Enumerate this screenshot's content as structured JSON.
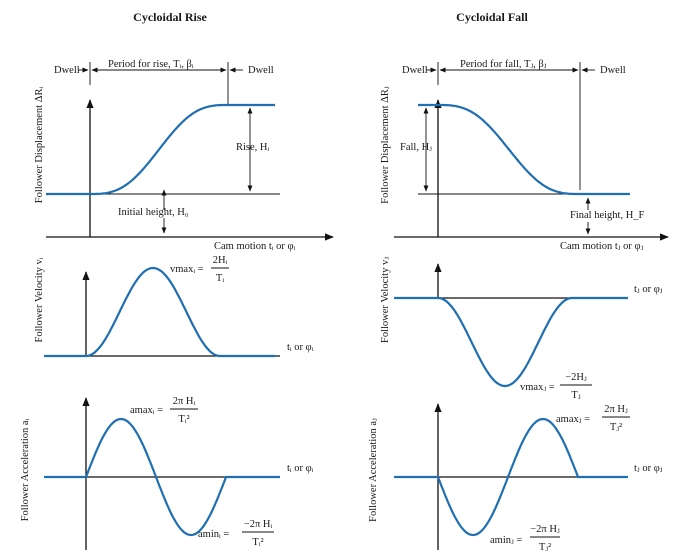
{
  "panels": {
    "rise": {
      "title": "Cycloidal Rise",
      "dwell_left": "Dwell",
      "dwell_right": "Dwell",
      "period": "Period for rise, Tᵢ, βᵢ",
      "rise_label": "Rise, Hᵢ",
      "initial": "Initial height, H₀",
      "cam_motion": "Cam motion tᵢ or φᵢ",
      "axis_t_vel": "tᵢ or φᵢ",
      "axis_t_acc": "tᵢ or φᵢ",
      "vmax_lhs": "vmaxᵢ =",
      "vmax_num": "2Hᵢ",
      "vmax_den": "Tᵢ",
      "amax_lhs": "amaxᵢ =",
      "amax_num": "2π Hᵢ",
      "amax_den": "Tᵢ²",
      "amin_lhs": "aminᵢ =",
      "amin_num": "−2π Hᵢ",
      "amin_den": "Tᵢ²"
    },
    "fall": {
      "title": "Cycloidal Fall",
      "dwell_left": "Dwell",
      "dwell_right": "Dwell",
      "period": "Period for fall, Tⱼ, βⱼ",
      "fall_label": "Fall, Hⱼ",
      "final": "Final height, H_F",
      "cam_motion": "Cam motion tⱼ or φⱼ",
      "axis_t_vel": "tⱼ or φⱼ",
      "axis_t_acc": "tⱼ or φⱼ",
      "vmax_lhs": "vmaxⱼ =",
      "vmax_num": "−2Hⱼ",
      "vmax_den": "Tⱼ",
      "amax_lhs": "amaxⱼ =",
      "amax_num": "2π Hⱼ",
      "amax_den": "Tⱼ²",
      "amin_lhs": "aminⱼ =",
      "amin_num": "−2π Hⱼ",
      "amin_den": "Tⱼ²"
    }
  },
  "ylabels": {
    "disp_rise": "Follower Displacement ΔRᵢ",
    "vel_rise": "Follower Velocity vᵢ",
    "acc_rise": "Follower Acceleration aᵢ",
    "disp_fall": "Follower Displacement ΔRⱼ",
    "vel_fall": "Follower Velocity vⱼ",
    "acc_fall": "Follower Acceleration aⱼ"
  },
  "colors": {
    "curve": "#1f6fb2",
    "axis": "#111111"
  }
}
